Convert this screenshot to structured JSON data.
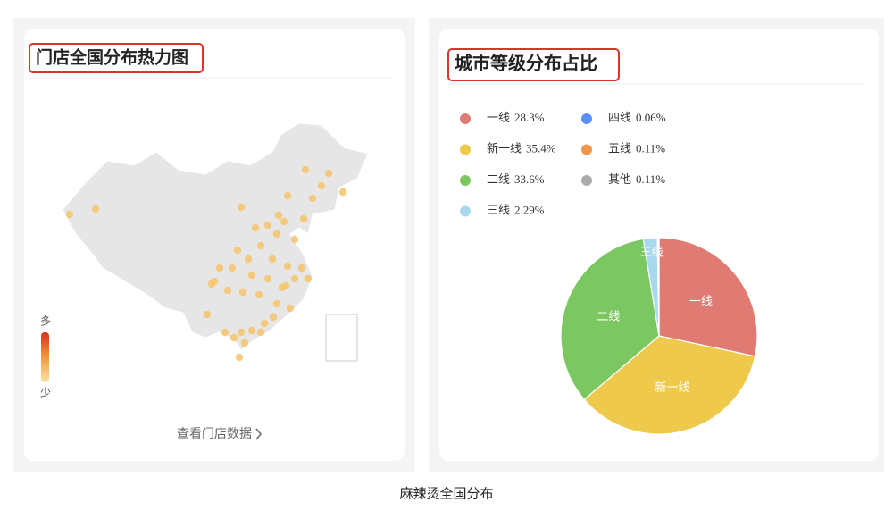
{
  "caption": "麻辣烫全国分布",
  "map_panel": {
    "title": "门店全国分布热力图",
    "legend_high": "多",
    "legend_low": "少",
    "link": "查看门店数据"
  },
  "chart_data": {
    "type": "pie",
    "title": "城市等级分布占比",
    "categories": [
      "一线",
      "新一线",
      "二线",
      "三线",
      "四线",
      "五线",
      "其他"
    ],
    "values": [
      28.3,
      35.4,
      33.6,
      2.29,
      0.06,
      0.11,
      0.11
    ],
    "value_labels": [
      "28.3%",
      "35.4%",
      "33.6%",
      "2.29%",
      "0.06%",
      "0.11%",
      "0.11%"
    ],
    "colors": [
      "#e07b74",
      "#efc94c",
      "#7bc862",
      "#a8d8ee",
      "#5b8ff9",
      "#f0954a",
      "#aaaaaa"
    ]
  }
}
